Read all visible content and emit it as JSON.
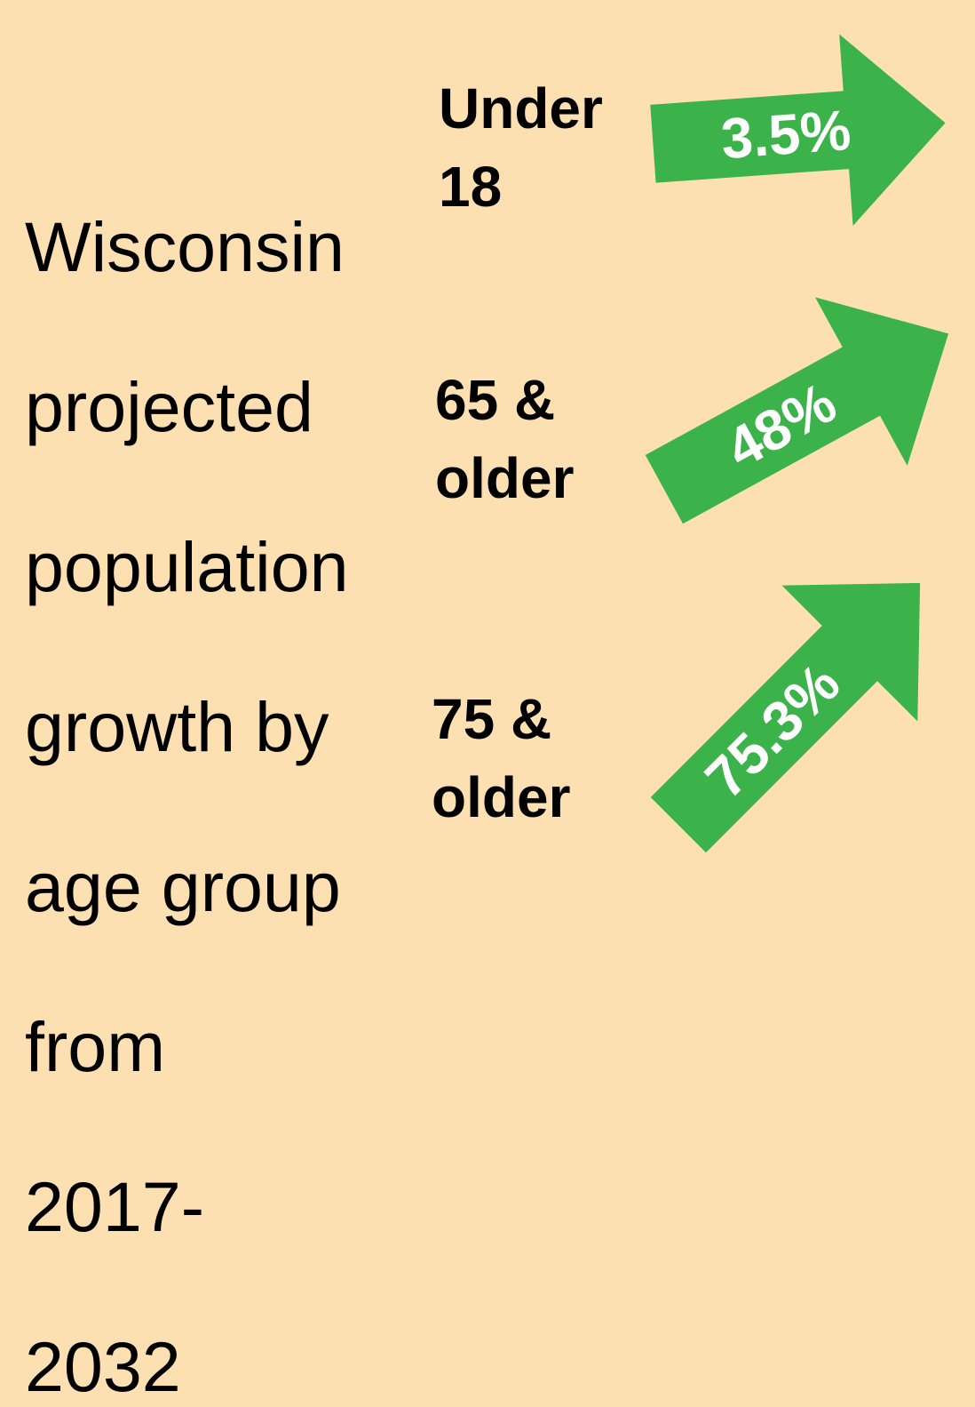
{
  "title": "Wisconsin projected population growth by age group from 2017-2032",
  "title_lines": [
    "Wisconsin",
    "projected",
    "population",
    "growth by",
    "age group",
    "from",
    "2017-",
    "2032"
  ],
  "colors": {
    "background": "#fde0b1",
    "arrow": "#3bb34a",
    "arrow_text": "#ffffff",
    "text": "#000000"
  },
  "chart_data": {
    "type": "bar",
    "title": "Wisconsin projected population growth by age group from 2017-2032",
    "categories": [
      "Under 18",
      "65 & older",
      "75 & older"
    ],
    "values": [
      3.5,
      48,
      75.3
    ],
    "value_labels": [
      "3.5%",
      "48%",
      "75.3%"
    ],
    "label_lines": [
      [
        "Under",
        "18"
      ],
      [
        "65 &",
        "older"
      ],
      [
        "75 &",
        "older"
      ]
    ],
    "unit": "%",
    "mark": "arrow",
    "xlabel": "",
    "ylabel": ""
  }
}
